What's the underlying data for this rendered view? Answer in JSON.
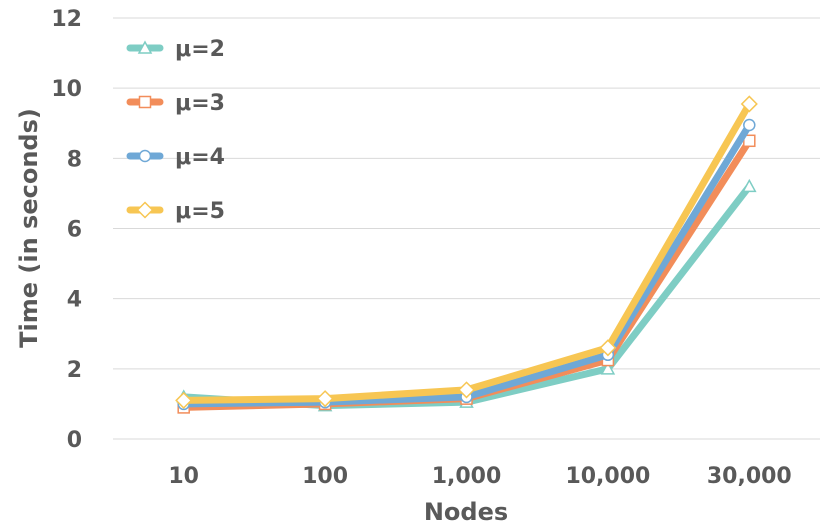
{
  "chart_data": {
    "type": "line",
    "xlabel": "Nodes",
    "ylabel": "Time (in seconds)",
    "categories": [
      "10",
      "100",
      "1,000",
      "10,000",
      "30,000"
    ],
    "ylim": [
      0,
      12
    ],
    "yticks": [
      "0",
      "2",
      "4",
      "6",
      "8",
      "10",
      "12"
    ],
    "grid": "horizontal",
    "legend_position": "top-left",
    "series": [
      {
        "name": "μ=2",
        "marker": "triangle",
        "color": "#7ECDC4",
        "values": [
          1.2,
          0.95,
          1.05,
          2.0,
          7.2
        ]
      },
      {
        "name": "μ=3",
        "marker": "square",
        "color": "#F28D5A",
        "values": [
          0.9,
          1.0,
          1.15,
          2.25,
          8.5
        ]
      },
      {
        "name": "μ=4",
        "marker": "circle",
        "color": "#6FA8D6",
        "values": [
          1.0,
          1.05,
          1.2,
          2.4,
          8.95
        ]
      },
      {
        "name": "μ=5",
        "marker": "diamond",
        "color": "#F7C653",
        "values": [
          1.1,
          1.15,
          1.4,
          2.6,
          9.55
        ]
      }
    ]
  }
}
